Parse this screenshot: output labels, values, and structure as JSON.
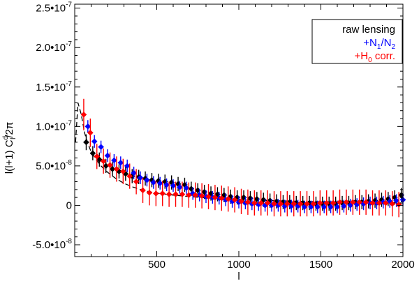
{
  "chart_data": {
    "type": "scatter",
    "title": "",
    "xlabel": "l",
    "ylabel": "l(l+1) C",
    "ylabel_sub": "l",
    "ylabel_sup": "d",
    "ylabel_tail": "/2π",
    "xlim": [
      0,
      2000
    ],
    "ylim": [
      -6.5e-08,
      2.55e-07
    ],
    "x_ticks": [
      {
        "value": 500,
        "label": "500"
      },
      {
        "value": 1000,
        "label": "1000"
      },
      {
        "value": 1500,
        "label": "1500"
      },
      {
        "value": 2000,
        "label": "2000"
      }
    ],
    "y_ticks": [
      {
        "value": -5e-08,
        "label": "-5.0•10",
        "exp": "-8"
      },
      {
        "value": 0,
        "label": "0",
        "exp": ""
      },
      {
        "value": 5e-08,
        "label": "5.0•10",
        "exp": "-8"
      },
      {
        "value": 1e-07,
        "label": "1.0•10",
        "exp": "-7"
      },
      {
        "value": 1.5e-07,
        "label": "1.5•10",
        "exp": "-7"
      },
      {
        "value": 2e-07,
        "label": "2.0•10",
        "exp": "-7"
      },
      {
        "value": 2.5e-07,
        "label": "2.5•10",
        "exp": "-7"
      }
    ],
    "legend": {
      "position": "top-right",
      "items": [
        {
          "text": "raw lensing",
          "parts": [],
          "color": "#000000"
        },
        {
          "text": "+N1/N2",
          "parts": [
            {
              "t": "+N"
            },
            {
              "t": "1",
              "sub": true
            },
            {
              "t": "/N"
            },
            {
              "t": "2",
              "sub": true
            }
          ],
          "color": "#0000ff"
        },
        {
          "text": "+H0 corr.",
          "parts": [
            {
              "t": "+H"
            },
            {
              "t": "0",
              "sub": true
            },
            {
              "t": " corr."
            }
          ],
          "color": "#ff0000"
        }
      ]
    },
    "theory_curve": {
      "style": "dashed",
      "color": "#000000",
      "x": [
        5,
        20,
        40,
        60,
        80,
        100,
        130,
        160,
        200,
        250,
        300,
        350,
        400,
        450,
        500,
        600,
        700,
        800,
        900,
        1000,
        1200,
        1400,
        1600,
        1800,
        2000
      ],
      "y": [
        8e-08,
        1.3e-07,
        1.15e-07,
        9.2e-08,
        7.8e-08,
        6.8e-08,
        5.8e-08,
        5e-08,
        4.2e-08,
        3.4e-08,
        2.8e-08,
        2.35e-08,
        2e-08,
        1.75e-08,
        1.55e-08,
        1.3e-08,
        1.1e-08,
        9.5e-09,
        8.5e-09,
        7.5e-09,
        6e-09,
        5e-09,
        4.2e-09,
        3.6e-09,
        3e-09
      ]
    },
    "series": [
      {
        "name": "raw lensing",
        "color": "#000000",
        "x": [
          70,
          110,
          150,
          190,
          230,
          270,
          310,
          350,
          390,
          430,
          470,
          510,
          550,
          590,
          630,
          670,
          710,
          750,
          790,
          830,
          870,
          910,
          950,
          990,
          1030,
          1070,
          1110,
          1150,
          1190,
          1230,
          1270,
          1310,
          1350,
          1390,
          1430,
          1470,
          1510,
          1550,
          1590,
          1630,
          1670,
          1710,
          1750,
          1790,
          1830,
          1870,
          1910,
          1950,
          1990
        ],
        "y": [
          8e-08,
          6.6e-08,
          5.8e-08,
          5e-08,
          4.6e-08,
          4.3e-08,
          4e-08,
          3.7e-08,
          3.6e-08,
          3.4e-08,
          3.2e-08,
          3.1e-08,
          3e-08,
          2.9e-08,
          2.7e-08,
          2.6e-08,
          2.1e-08,
          1.9e-08,
          1.7e-08,
          1.5e-08,
          1.4e-08,
          1.3e-08,
          1.1e-08,
          1e-08,
          1e-08,
          9e-09,
          8e-09,
          7e-09,
          6e-09,
          5e-09,
          4e-09,
          4e-09,
          3e-09,
          3e-09,
          3e-09,
          2e-09,
          2e-09,
          2e-09,
          2e-09,
          3e-09,
          3e-09,
          4e-09,
          4e-09,
          5e-09,
          6e-09,
          7e-09,
          8e-09,
          1e-08,
          1.3e-08
        ],
        "err": [
          1e-08,
          9e-09,
          9e-09,
          9e-09,
          9e-09,
          9e-09,
          9e-09,
          9e-09,
          9e-09,
          9e-09,
          9e-09,
          9e-09,
          9e-09,
          9e-09,
          9e-09,
          9e-09,
          9e-09,
          9e-09,
          9e-09,
          9e-09,
          9e-09,
          9e-09,
          9e-09,
          9e-09,
          9e-09,
          9e-09,
          9e-09,
          9e-09,
          9e-09,
          9e-09,
          9e-09,
          9e-09,
          9e-09,
          9e-09,
          9e-09,
          9e-09,
          9e-09,
          9e-09,
          9e-09,
          9e-09,
          9e-09,
          9e-09,
          9e-09,
          9e-09,
          9e-09,
          9e-09,
          9e-09,
          9e-09,
          9e-09
        ]
      },
      {
        "name": "+N1/N2",
        "color": "#0000ff",
        "x": [
          80,
          120,
          160,
          200,
          240,
          280,
          320,
          360,
          400,
          440,
          480,
          520,
          560,
          600,
          640,
          680,
          720,
          760,
          800,
          840,
          880,
          920,
          960,
          1000,
          1040,
          1080,
          1120,
          1160,
          1200,
          1240,
          1280,
          1320,
          1360,
          1400,
          1440,
          1480,
          1520,
          1560,
          1600,
          1640,
          1680,
          1720,
          1760,
          1800,
          1840,
          1880,
          1920,
          1960,
          2000
        ],
        "y": [
          1e-07,
          8.1e-08,
          7.4e-08,
          6.3e-08,
          5.7e-08,
          5.4e-08,
          5e-08,
          4.1e-08,
          3.5e-08,
          3.2e-08,
          2.9e-08,
          2.8e-08,
          2.6e-08,
          2.5e-08,
          2.3e-08,
          2.2e-08,
          1.5e-08,
          1.3e-08,
          1.1e-08,
          1e-08,
          9e-09,
          7e-09,
          5e-09,
          4e-09,
          3e-09,
          2e-09,
          1e-09,
          0.0,
          0.0,
          0.0,
          -1e-09,
          -1e-09,
          -1e-09,
          -2e-09,
          -2e-09,
          -2e-09,
          -2e-09,
          -2e-09,
          -2e-09,
          -1e-09,
          0.0,
          1e-09,
          2e-09,
          3e-09,
          3e-09,
          4e-09,
          5e-09,
          6e-09,
          7e-09
        ],
        "err": [
          8e-09,
          8e-09,
          8e-09,
          8e-09,
          8e-09,
          8e-09,
          8e-09,
          8e-09,
          8e-09,
          8e-09,
          8e-09,
          8e-09,
          8e-09,
          8e-09,
          8e-09,
          8e-09,
          8e-09,
          8e-09,
          8e-09,
          8e-09,
          8e-09,
          8e-09,
          8e-09,
          8e-09,
          8e-09,
          8e-09,
          8e-09,
          8e-09,
          8e-09,
          8e-09,
          8e-09,
          8e-09,
          8e-09,
          8e-09,
          8e-09,
          8e-09,
          8e-09,
          8e-09,
          8e-09,
          8e-09,
          8e-09,
          8e-09,
          8e-09,
          8e-09,
          8e-09,
          8e-09,
          8e-09,
          8e-09,
          8e-09
        ]
      },
      {
        "name": "+H0 corr.",
        "color": "#ff0000",
        "x": [
          55,
          95,
          135,
          175,
          215,
          255,
          295,
          335,
          375,
          415,
          455,
          495,
          535,
          575,
          615,
          655,
          695,
          735,
          775,
          815,
          855,
          895,
          935,
          975,
          1015,
          1055,
          1095,
          1135,
          1175,
          1215,
          1255,
          1295,
          1335,
          1375,
          1415,
          1455,
          1495,
          1535,
          1575,
          1615,
          1655,
          1695,
          1735,
          1775,
          1815,
          1855,
          1895,
          1935,
          1975
        ],
        "y": [
          1.15e-07,
          9.2e-08,
          6.2e-08,
          5.6e-08,
          5.1e-08,
          4.6e-08,
          4.3e-08,
          3.7e-08,
          3e-08,
          1.9e-08,
          1.6e-08,
          1.5e-08,
          1.5e-08,
          1.4e-08,
          1.4e-08,
          1.4e-08,
          1.3e-08,
          1.3e-08,
          1.2e-08,
          1.1e-08,
          1e-08,
          9e-09,
          8e-09,
          7e-09,
          5e-09,
          4e-09,
          3e-09,
          3e-09,
          3e-09,
          2e-09,
          2e-09,
          2e-09,
          2e-09,
          2e-09,
          2e-09,
          2e-09,
          3e-09,
          3e-09,
          3e-09,
          4e-09,
          4e-09,
          4e-09,
          4e-09,
          4e-09,
          3e-09,
          3e-09,
          3e-09,
          2e-09,
          1e-09
        ],
        "err": [
          2e-08,
          1.8e-08,
          1.6e-08,
          1.6e-08,
          1.6e-08,
          1.6e-08,
          1.6e-08,
          1.6e-08,
          1.6e-08,
          1.6e-08,
          1.6e-08,
          1.6e-08,
          1.6e-08,
          1.6e-08,
          1.6e-08,
          1.6e-08,
          1.6e-08,
          1.6e-08,
          1.6e-08,
          1.6e-08,
          1.6e-08,
          1.6e-08,
          1.6e-08,
          1.6e-08,
          1.6e-08,
          1.6e-08,
          1.6e-08,
          1.6e-08,
          1.6e-08,
          1.6e-08,
          1.6e-08,
          1.6e-08,
          1.6e-08,
          1.6e-08,
          1.6e-08,
          1.6e-08,
          1.6e-08,
          1.6e-08,
          1.6e-08,
          1.6e-08,
          1.6e-08,
          1.6e-08,
          1.6e-08,
          1.6e-08,
          1.6e-08,
          1.6e-08,
          1.6e-08,
          1.6e-08,
          1.6e-08
        ]
      }
    ]
  }
}
